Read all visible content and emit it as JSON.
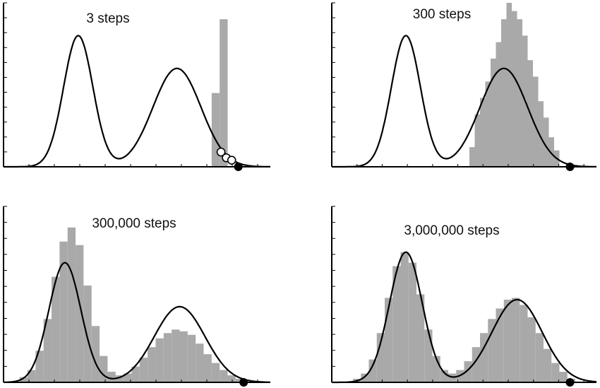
{
  "colors": {
    "histogram": "#a9a9a9",
    "curve": "#000000",
    "background": "#ffffff"
  },
  "chart_data": [
    {
      "type": "area",
      "title": "3 steps",
      "xlabel": "",
      "ylabel": "",
      "xlim": [
        0,
        10
      ],
      "ylim": [
        0,
        1
      ],
      "density_components": [
        {
          "mean": 2.8,
          "sd": 0.55,
          "weight": 0.8
        },
        {
          "mean": 6.5,
          "sd": 0.9,
          "weight": 0.6
        }
      ],
      "histogram": {
        "bin_edges": [
          7.8,
          8.1,
          8.4
        ],
        "heights": [
          0.45,
          0.9
        ]
      },
      "walk_points": [
        {
          "x": 8.15,
          "y": 0.09
        },
        {
          "x": 8.35,
          "y": 0.055
        },
        {
          "x": 8.55,
          "y": 0.04
        }
      ],
      "start_point": {
        "x": 8.8,
        "y": 0.0
      }
    },
    {
      "type": "area",
      "title": "300 steps",
      "xlabel": "",
      "ylabel": "",
      "xlim": [
        0,
        10
      ],
      "ylim": [
        0,
        1
      ],
      "density_components": [
        {
          "mean": 2.8,
          "sd": 0.55,
          "weight": 0.8
        },
        {
          "mean": 6.5,
          "sd": 0.9,
          "weight": 0.6
        }
      ],
      "histogram": {
        "bin_edges": [
          5.2,
          5.4,
          5.6,
          5.8,
          6.0,
          6.2,
          6.4,
          6.6,
          6.8,
          7.0,
          7.2,
          7.4,
          7.6,
          7.8,
          8.0,
          8.2,
          8.4,
          8.6
        ],
        "heights": [
          0.12,
          0.32,
          0.42,
          0.52,
          0.66,
          0.76,
          0.9,
          1.0,
          0.95,
          0.9,
          0.8,
          0.65,
          0.55,
          0.4,
          0.3,
          0.18,
          0.1
        ]
      },
      "start_point": {
        "x": 9.0,
        "y": 0.0
      }
    },
    {
      "type": "area",
      "title": "300,000 steps",
      "xlabel": "",
      "ylabel": "",
      "xlim": [
        0,
        10
      ],
      "ylim": [
        0,
        1
      ],
      "density_components": [
        {
          "mean": 2.3,
          "sd": 0.6,
          "weight": 0.68
        },
        {
          "mean": 6.6,
          "sd": 0.95,
          "weight": 0.43
        }
      ],
      "histogram": {
        "bin_edges": [
          0.6,
          0.9,
          1.2,
          1.5,
          1.8,
          2.1,
          2.4,
          2.7,
          3.0,
          3.3,
          3.6,
          3.9,
          4.2,
          4.5,
          4.8,
          5.1,
          5.4,
          5.7,
          6.0,
          6.3,
          6.6,
          6.9,
          7.2,
          7.5,
          7.8,
          8.1,
          8.4,
          8.7,
          9.0
        ],
        "heights": [
          0.03,
          0.07,
          0.18,
          0.36,
          0.6,
          0.8,
          0.88,
          0.78,
          0.55,
          0.32,
          0.15,
          0.06,
          0.04,
          0.05,
          0.09,
          0.14,
          0.2,
          0.25,
          0.28,
          0.3,
          0.29,
          0.27,
          0.22,
          0.16,
          0.11,
          0.07,
          0.04,
          0.02
        ]
      },
      "start_point": {
        "x": 9.0,
        "y": 0.0
      }
    },
    {
      "type": "area",
      "title": "3,000,000 steps",
      "xlabel": "",
      "ylabel": "",
      "xlim": [
        0,
        10
      ],
      "ylim": [
        0,
        1
      ],
      "density_components": [
        {
          "mean": 2.8,
          "sd": 0.62,
          "weight": 0.74
        },
        {
          "mean": 7.0,
          "sd": 0.95,
          "weight": 0.47
        }
      ],
      "histogram": {
        "bin_edges": [
          0.8,
          1.1,
          1.4,
          1.7,
          2.0,
          2.3,
          2.6,
          2.9,
          3.2,
          3.5,
          3.8,
          4.1,
          4.4,
          4.7,
          5.0,
          5.3,
          5.6,
          5.9,
          6.2,
          6.5,
          6.8,
          7.1,
          7.4,
          7.7,
          8.0,
          8.3,
          8.6,
          8.9,
          9.2
        ],
        "heights": [
          0.02,
          0.05,
          0.13,
          0.28,
          0.48,
          0.66,
          0.74,
          0.68,
          0.5,
          0.3,
          0.15,
          0.07,
          0.05,
          0.07,
          0.12,
          0.2,
          0.28,
          0.36,
          0.42,
          0.47,
          0.48,
          0.44,
          0.37,
          0.28,
          0.19,
          0.11,
          0.06,
          0.02
        ]
      },
      "start_point": {
        "x": 9.0,
        "y": 0.0
      }
    }
  ]
}
